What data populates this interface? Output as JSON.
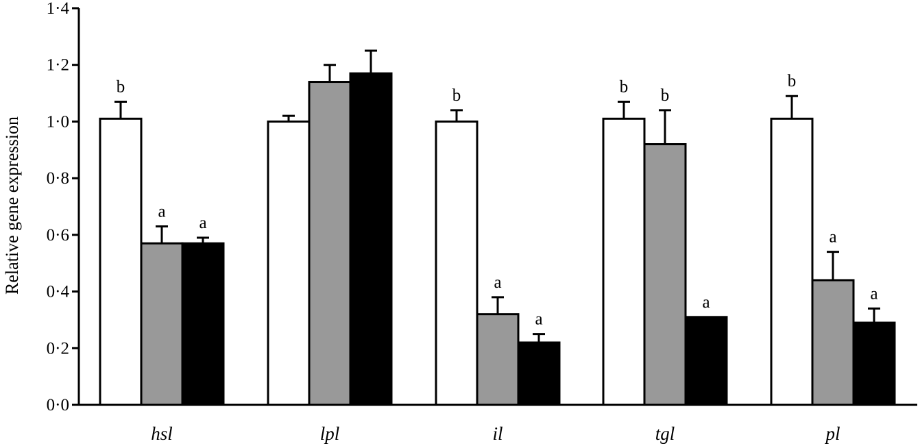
{
  "chart_data": {
    "type": "bar",
    "title": "",
    "xlabel": "",
    "ylabel": "Relative gene expression",
    "ylim": [
      0,
      1.4
    ],
    "yticks": [
      "0·0",
      "0·2",
      "0·4",
      "0·6",
      "0·8",
      "1·0",
      "1·2",
      "1·4"
    ],
    "ytick_values": [
      0,
      0.2,
      0.4,
      0.6,
      0.8,
      1.0,
      1.2,
      1.4
    ],
    "categories": [
      "hsl",
      "lpl",
      "il",
      "tgl",
      "pl"
    ],
    "grid": false,
    "legend": "none",
    "series": [
      {
        "color": "#ffffff",
        "values": [
          1.01,
          1.0,
          1.0,
          1.01,
          1.01
        ],
        "errors": [
          0.06,
          0.02,
          0.04,
          0.06,
          0.08
        ],
        "labels": [
          "b",
          "",
          "b",
          "b",
          "b"
        ]
      },
      {
        "color": "#999999",
        "values": [
          0.57,
          1.14,
          0.32,
          0.92,
          0.44
        ],
        "errors": [
          0.06,
          0.06,
          0.06,
          0.12,
          0.1
        ],
        "labels": [
          "a",
          "",
          "a",
          "b",
          "a"
        ]
      },
      {
        "color": "#000000",
        "values": [
          0.57,
          1.17,
          0.22,
          0.31,
          0.29
        ],
        "errors": [
          0.02,
          0.08,
          0.03,
          0.0,
          0.05
        ],
        "labels": [
          "a",
          "",
          "a",
          "a",
          "a"
        ]
      }
    ]
  }
}
